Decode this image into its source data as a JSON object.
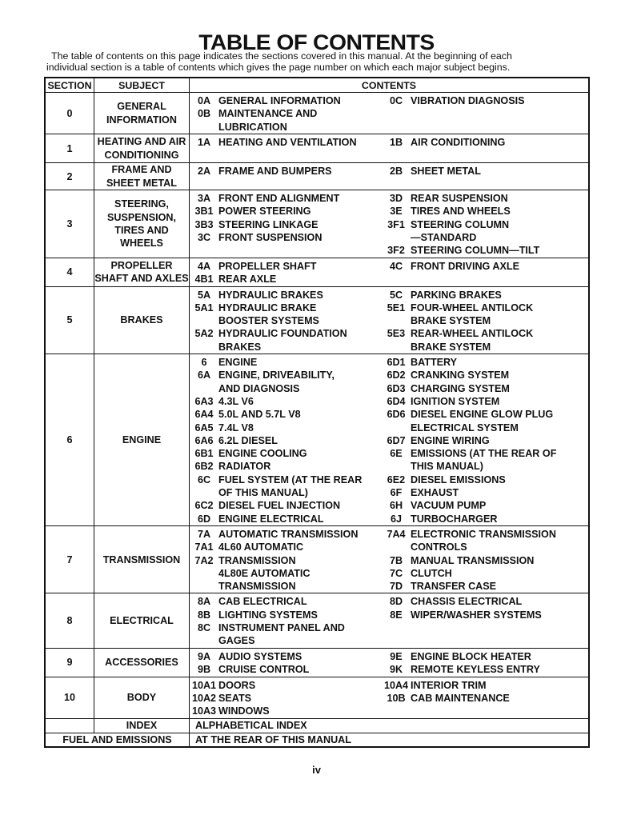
{
  "title": "TABLE OF CONTENTS",
  "intro_line1": "The table of contents on this page indicates the sections covered in this manual. At the beginning of each",
  "intro_line2": "individual section is a table of contents which gives the page number on which each major subject begins.",
  "headers": {
    "section": "SECTION",
    "subject": "SUBJECT",
    "contents": "CONTENTS"
  },
  "rows": [
    {
      "section": "0",
      "subject": [
        "GENERAL",
        "INFORMATION"
      ],
      "left": [
        [
          "0A",
          "GENERAL INFORMATION"
        ],
        [
          "0B",
          "MAINTENANCE AND"
        ],
        [
          "",
          "LUBRICATION"
        ]
      ],
      "right": [
        [
          "0C",
          "VIBRATION DIAGNOSIS"
        ]
      ]
    },
    {
      "section": "1",
      "subject": [
        "HEATING AND AIR",
        "CONDITIONING"
      ],
      "left": [
        [
          "1A",
          "HEATING AND VENTILATION"
        ]
      ],
      "right": [
        [
          "1B",
          "AIR CONDITIONING"
        ]
      ]
    },
    {
      "section": "2",
      "subject": [
        "FRAME AND",
        "SHEET METAL"
      ],
      "left": [
        [
          "2A",
          "FRAME AND BUMPERS"
        ]
      ],
      "right": [
        [
          "2B",
          "SHEET METAL"
        ]
      ]
    },
    {
      "section": "3",
      "subject": [
        "STEERING,",
        "SUSPENSION,",
        "TIRES AND",
        "WHEELS"
      ],
      "left": [
        [
          "3A",
          "FRONT END ALIGNMENT"
        ],
        [
          "3B1",
          "POWER STEERING"
        ],
        [
          "3B3",
          "STEERING LINKAGE"
        ],
        [
          "3C",
          "FRONT SUSPENSION"
        ]
      ],
      "right": [
        [
          "3D",
          "REAR SUSPENSION"
        ],
        [
          "3E",
          "TIRES AND WHEELS"
        ],
        [
          "3F1",
          "STEERING COLUMN"
        ],
        [
          "",
          "—STANDARD"
        ],
        [
          "3F2",
          "STEERING COLUMN—TILT"
        ]
      ]
    },
    {
      "section": "4",
      "subject": [
        "PROPELLER",
        "SHAFT AND AXLES"
      ],
      "left": [
        [
          "4A",
          "PROPELLER SHAFT"
        ],
        [
          "4B1",
          "REAR AXLE"
        ]
      ],
      "right": [
        [
          "4C",
          "FRONT DRIVING AXLE"
        ]
      ]
    },
    {
      "section": "5",
      "subject": [
        "BRAKES"
      ],
      "left": [
        [
          "5A",
          "HYDRAULIC BRAKES"
        ],
        [
          "5A1",
          "HYDRAULIC BRAKE"
        ],
        [
          "",
          "BOOSTER SYSTEMS"
        ],
        [
          "5A2",
          "HYDRAULIC FOUNDATION"
        ],
        [
          "",
          "BRAKES"
        ]
      ],
      "right": [
        [
          "5C",
          "PARKING BRAKES"
        ],
        [
          "5E1",
          "FOUR-WHEEL ANTILOCK"
        ],
        [
          "",
          "BRAKE SYSTEM"
        ],
        [
          "5E3",
          "REAR-WHEEL ANTILOCK"
        ],
        [
          "",
          "BRAKE SYSTEM"
        ]
      ]
    },
    {
      "section": "6",
      "subject": [
        "ENGINE"
      ],
      "left": [
        [
          "6",
          "ENGINE"
        ],
        [
          "6A",
          "ENGINE, DRIVEABILITY,"
        ],
        [
          "",
          "AND DIAGNOSIS"
        ],
        [
          "6A3",
          "4.3L V6"
        ],
        [
          "6A4",
          "5.0L AND 5.7L V8"
        ],
        [
          "6A5",
          "7.4L V8"
        ],
        [
          "6A6",
          "6.2L DIESEL"
        ],
        [
          "6B1",
          "ENGINE COOLING"
        ],
        [
          "6B2",
          "RADIATOR"
        ],
        [
          "6C",
          "FUEL SYSTEM (AT THE REAR"
        ],
        [
          "",
          "OF THIS MANUAL)"
        ],
        [
          "6C2",
          "DIESEL FUEL INJECTION"
        ],
        [
          "6D",
          "ENGINE ELECTRICAL"
        ]
      ],
      "right": [
        [
          "6D1",
          "BATTERY"
        ],
        [
          "6D2",
          "CRANKING SYSTEM"
        ],
        [
          "6D3",
          "CHARGING SYSTEM"
        ],
        [
          "6D4",
          "IGNITION SYSTEM"
        ],
        [
          "6D6",
          "DIESEL ENGINE GLOW PLUG"
        ],
        [
          "",
          "ELECTRICAL SYSTEM"
        ],
        [
          "6D7",
          "ENGINE WIRING"
        ],
        [
          "6E",
          "EMISSIONS (AT THE REAR OF"
        ],
        [
          "",
          "THIS MANUAL)"
        ],
        [
          "6E2",
          "DIESEL EMISSIONS"
        ],
        [
          "6F",
          "EXHAUST"
        ],
        [
          "6H",
          "VACUUM PUMP"
        ],
        [
          "6J",
          "TURBOCHARGER"
        ]
      ]
    },
    {
      "section": "7",
      "subject": [
        "TRANSMISSION"
      ],
      "left": [
        [
          "7A",
          "AUTOMATIC TRANSMISSION"
        ],
        [
          "7A1",
          "4L60 AUTOMATIC"
        ],
        [
          "7A2",
          "TRANSMISSION"
        ],
        [
          "",
          "4L80E AUTOMATIC"
        ],
        [
          "",
          "TRANSMISSION"
        ]
      ],
      "right": [
        [
          "7A4",
          "ELECTRONIC TRANSMISSION"
        ],
        [
          "",
          "CONTROLS"
        ],
        [
          "7B",
          "MANUAL TRANSMISSION"
        ],
        [
          "7C",
          "CLUTCH"
        ],
        [
          "7D",
          "TRANSFER CASE"
        ]
      ]
    },
    {
      "section": "8",
      "subject": [
        "ELECTRICAL"
      ],
      "left": [
        [
          "8A",
          "CAB ELECTRICAL"
        ],
        [
          "8B",
          "LIGHTING SYSTEMS"
        ],
        [
          "8C",
          "INSTRUMENT PANEL AND"
        ],
        [
          "",
          "GAGES"
        ]
      ],
      "right": [
        [
          "8D",
          "CHASSIS ELECTRICAL"
        ],
        [
          "8E",
          "WIPER/WASHER SYSTEMS"
        ]
      ]
    },
    {
      "section": "9",
      "subject": [
        "ACCESSORIES"
      ],
      "left": [
        [
          "9A",
          "AUDIO SYSTEMS"
        ],
        [
          "9B",
          "CRUISE CONTROL"
        ]
      ],
      "right": [
        [
          "9E",
          "ENGINE BLOCK HEATER"
        ],
        [
          "9K",
          "REMOTE KEYLESS ENTRY"
        ]
      ]
    },
    {
      "section": "10",
      "subject": [
        "BODY"
      ],
      "left": [
        [
          "10A1",
          "DOORS"
        ],
        [
          "10A2",
          "SEATS"
        ],
        [
          "10A3",
          "WINDOWS"
        ]
      ],
      "right": [
        [
          "10A4",
          "INTERIOR TRIM"
        ],
        [
          "10B",
          "CAB MAINTENANCE"
        ]
      ]
    }
  ],
  "index_row": {
    "subject": "INDEX",
    "contents": "ALPHABETICAL INDEX"
  },
  "fuel_row": {
    "subject": "FUEL AND EMISSIONS",
    "contents": "AT THE REAR OF THIS MANUAL"
  },
  "page_number": "iv"
}
